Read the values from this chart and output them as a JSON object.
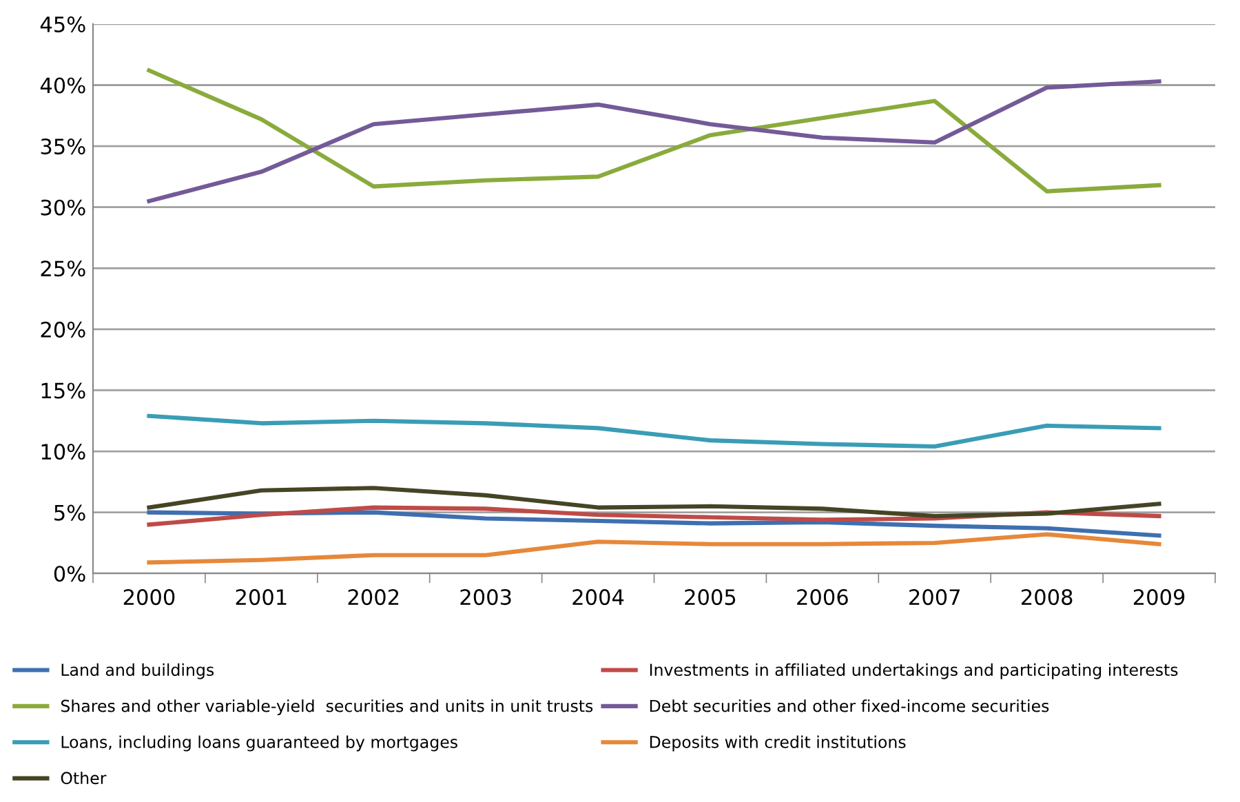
{
  "chart_data": {
    "type": "line",
    "categories": [
      "2000",
      "2001",
      "2002",
      "2003",
      "2004",
      "2005",
      "2006",
      "2007",
      "2008",
      "2009"
    ],
    "series": [
      {
        "name": "Land and buildings",
        "color": "#3e6fb0",
        "values": [
          5.0,
          4.9,
          5.0,
          4.5,
          4.3,
          4.1,
          4.2,
          3.9,
          3.7,
          3.1
        ]
      },
      {
        "name": "Investments in affiliated undertakings and participating interests",
        "color": "#be4b48",
        "values": [
          4.0,
          4.8,
          5.4,
          5.3,
          4.8,
          4.6,
          4.4,
          4.5,
          5.0,
          4.7
        ]
      },
      {
        "name": "Shares and other variable-yield  securities and units in unit trusts",
        "color": "#8aab3c",
        "values": [
          41.2,
          37.2,
          31.7,
          32.2,
          32.5,
          35.9,
          37.3,
          38.7,
          31.3,
          31.8
        ]
      },
      {
        "name": "Debt securities and other fixed-income securities",
        "color": "#745a98",
        "values": [
          30.5,
          32.9,
          36.8,
          37.6,
          38.4,
          36.8,
          35.7,
          35.3,
          39.8,
          40.3
        ]
      },
      {
        "name": "Loans, including loans guaranteed by mortgages",
        "color": "#3a9db5",
        "values": [
          12.9,
          12.3,
          12.5,
          12.3,
          11.9,
          10.9,
          10.6,
          10.4,
          12.1,
          11.9
        ]
      },
      {
        "name": "Deposits with credit institutions",
        "color": "#e6883a",
        "values": [
          0.9,
          1.1,
          1.5,
          1.5,
          2.6,
          2.4,
          2.4,
          2.5,
          3.2,
          2.4
        ]
      },
      {
        "name": "Other",
        "color": "#454525",
        "values": [
          5.4,
          6.8,
          7.0,
          6.4,
          5.4,
          5.5,
          5.3,
          4.7,
          4.9,
          5.7
        ]
      }
    ],
    "ylim": [
      0,
      45
    ],
    "yticks": [
      {
        "value": 0,
        "label": "0%"
      },
      {
        "value": 5,
        "label": "5%"
      },
      {
        "value": 10,
        "label": "10%"
      },
      {
        "value": 15,
        "label": "15%"
      },
      {
        "value": 20,
        "label": "20%"
      },
      {
        "value": 25,
        "label": "25%"
      },
      {
        "value": 30,
        "label": "30%"
      },
      {
        "value": 35,
        "label": "35%"
      },
      {
        "value": 40,
        "label": "40%"
      },
      {
        "value": 45,
        "label": "45%"
      }
    ],
    "grid": "y",
    "legend": "bottom",
    "marker": "none",
    "line_style": "solid"
  }
}
